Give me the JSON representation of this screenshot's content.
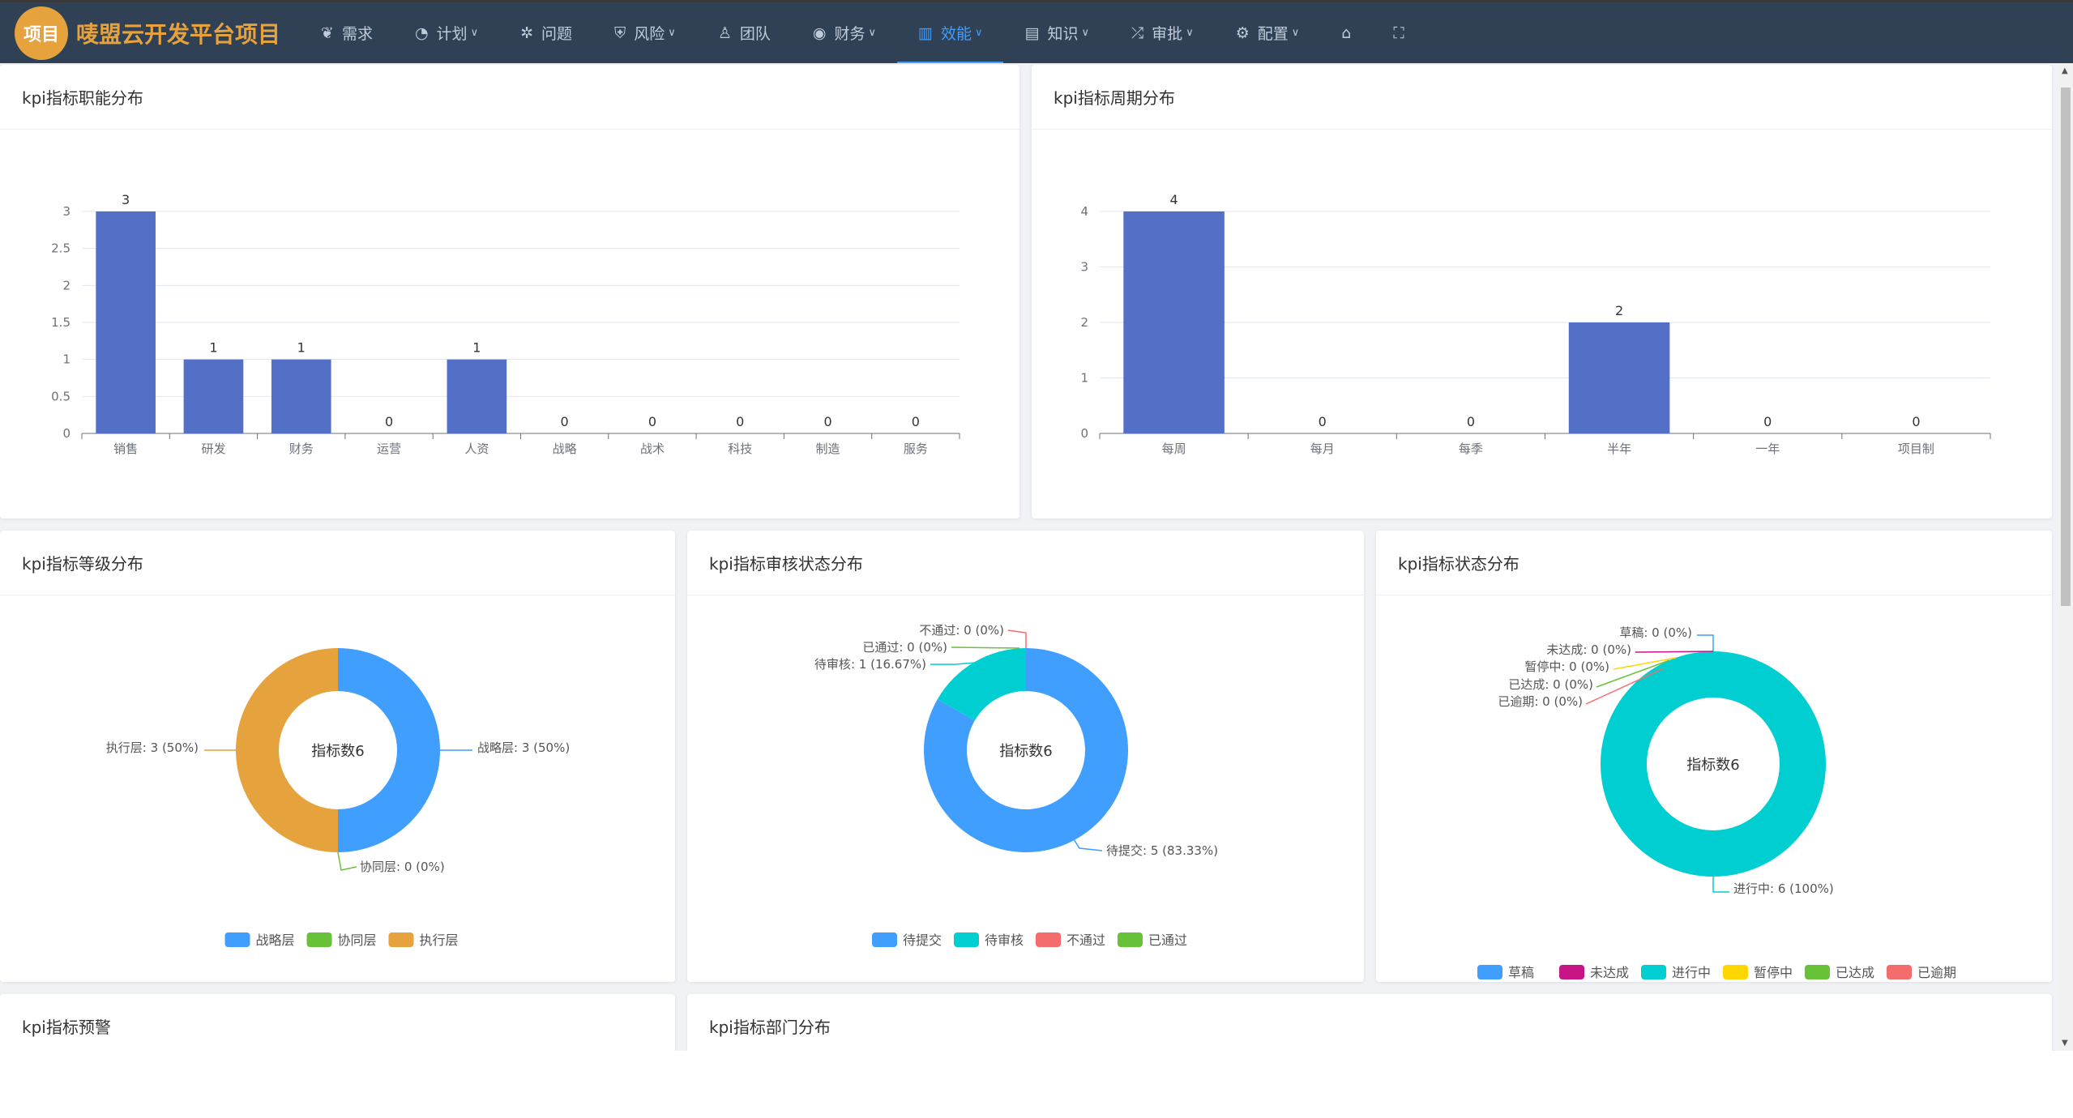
{
  "nav": {
    "logo": "项目",
    "brand": "唛盟云开发平台项目",
    "items": [
      {
        "label": "需求",
        "icon": "leaf-icon"
      },
      {
        "label": "计划",
        "icon": "plan-icon",
        "dropdown": true
      },
      {
        "label": "问题",
        "icon": "bug-icon"
      },
      {
        "label": "风险",
        "icon": "shield-icon",
        "dropdown": true
      },
      {
        "label": "团队",
        "icon": "sitemap-icon"
      },
      {
        "label": "财务",
        "icon": "coins-icon",
        "dropdown": true
      },
      {
        "label": "效能",
        "icon": "bar-chart-icon",
        "dropdown": true,
        "active": true
      },
      {
        "label": "知识",
        "icon": "book-icon",
        "dropdown": true
      },
      {
        "label": "审批",
        "icon": "shuffle-icon",
        "dropdown": true
      },
      {
        "label": "配置",
        "icon": "gear-icon",
        "dropdown": true
      }
    ],
    "home_icon": "home-icon",
    "fullscreen_icon": "fullscreen-icon"
  },
  "cards": {
    "c1": "kpi指标职能分布",
    "c2": "kpi指标周期分布",
    "c3": "kpi指标等级分布",
    "c4": "kpi指标审核状态分布",
    "c5": "kpi指标状态分布",
    "c6": "kpi指标预警",
    "c7": "kpi指标部门分布"
  },
  "chart_data": [
    {
      "type": "bar",
      "categories": [
        "销售",
        "研发",
        "财务",
        "运营",
        "人资",
        "战略",
        "战术",
        "科技",
        "制造",
        "服务"
      ],
      "values": [
        3,
        1,
        1,
        0,
        1,
        0,
        0,
        0,
        0,
        0
      ],
      "ylim": [
        0,
        3
      ],
      "yticks": [
        0,
        0.5,
        1,
        1.5,
        2,
        2.5,
        3
      ],
      "grid": true,
      "color": "#5470c6"
    },
    {
      "type": "bar",
      "categories": [
        "每周",
        "每月",
        "每季",
        "半年",
        "一年",
        "项目制"
      ],
      "values": [
        4,
        0,
        0,
        2,
        0,
        0
      ],
      "ylim": [
        0,
        4
      ],
      "yticks": [
        0,
        1,
        2,
        3,
        4
      ],
      "grid": true,
      "color": "#5470c6"
    },
    {
      "type": "pie",
      "center_label": "指标数6",
      "categories": [
        "战略层",
        "协同层",
        "执行层"
      ],
      "values": [
        3,
        0,
        3
      ],
      "percents": [
        "50%",
        "0%",
        "50%"
      ],
      "colors": [
        "#409eff",
        "#67c23a",
        "#e6a23c"
      ],
      "legend": "bottom"
    },
    {
      "type": "pie",
      "center_label": "指标数6",
      "categories": [
        "待提交",
        "待审核",
        "不通过",
        "已通过"
      ],
      "values": [
        5,
        1,
        0,
        0
      ],
      "percents": [
        "83.33%",
        "16.67%",
        "0%",
        "0%"
      ],
      "colors": [
        "#409eff",
        "#00ced1",
        "#f56c6c",
        "#67c23a"
      ],
      "legend": "bottom"
    },
    {
      "type": "pie",
      "center_label": "指标数6",
      "categories": [
        "草稿",
        "未达成",
        "进行中",
        "暂停中",
        "已达成",
        "已逾期"
      ],
      "values": [
        0,
        0,
        6,
        0,
        0,
        0
      ],
      "percents": [
        "0%",
        "0%",
        "100%",
        "0%",
        "0%",
        "0%"
      ],
      "colors": [
        "#409eff",
        "#c71585",
        "#00ced1",
        "#ffd700",
        "#67c23a",
        "#f56c6c"
      ],
      "legend": "bottom"
    }
  ]
}
